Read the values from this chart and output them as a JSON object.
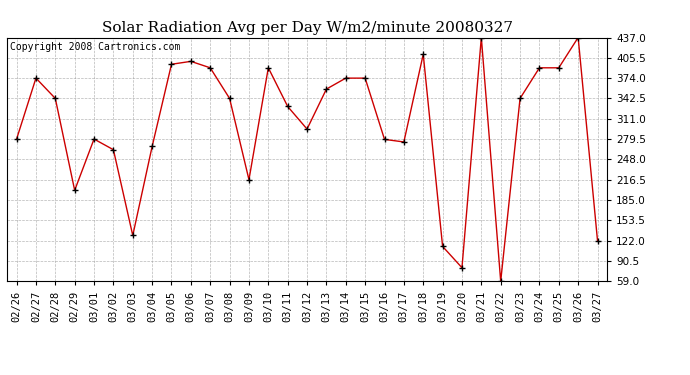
{
  "title": "Solar Radiation Avg per Day W/m2/minute 20080327",
  "copyright": "Copyright 2008 Cartronics.com",
  "dates": [
    "02/26",
    "02/27",
    "02/28",
    "02/29",
    "03/01",
    "03/02",
    "03/03",
    "03/04",
    "03/05",
    "03/06",
    "03/07",
    "03/08",
    "03/09",
    "03/10",
    "03/11",
    "03/12",
    "03/13",
    "03/14",
    "03/15",
    "03/16",
    "03/17",
    "03/18",
    "03/19",
    "03/20",
    "03/21",
    "03/22",
    "03/23",
    "03/24",
    "03/25",
    "03/26",
    "03/27"
  ],
  "values": [
    279.5,
    374.0,
    342.5,
    200.0,
    279.5,
    263.0,
    130.0,
    268.0,
    395.5,
    400.0,
    390.0,
    342.5,
    216.5,
    390.0,
    330.0,
    295.0,
    357.0,
    374.0,
    374.0,
    279.0,
    275.0,
    411.0,
    113.0,
    80.0,
    437.0,
    59.0,
    342.5,
    390.0,
    390.0,
    437.0,
    122.0
  ],
  "ylim": [
    59.0,
    437.0
  ],
  "yticks": [
    59.0,
    90.5,
    122.0,
    153.5,
    185.0,
    216.5,
    248.0,
    279.5,
    311.0,
    342.5,
    374.0,
    405.5,
    437.0
  ],
  "line_color": "#cc0000",
  "bg_color": "#ffffff",
  "grid_color": "#999999",
  "title_fontsize": 11,
  "tick_fontsize": 7.5,
  "copyright_fontsize": 7
}
